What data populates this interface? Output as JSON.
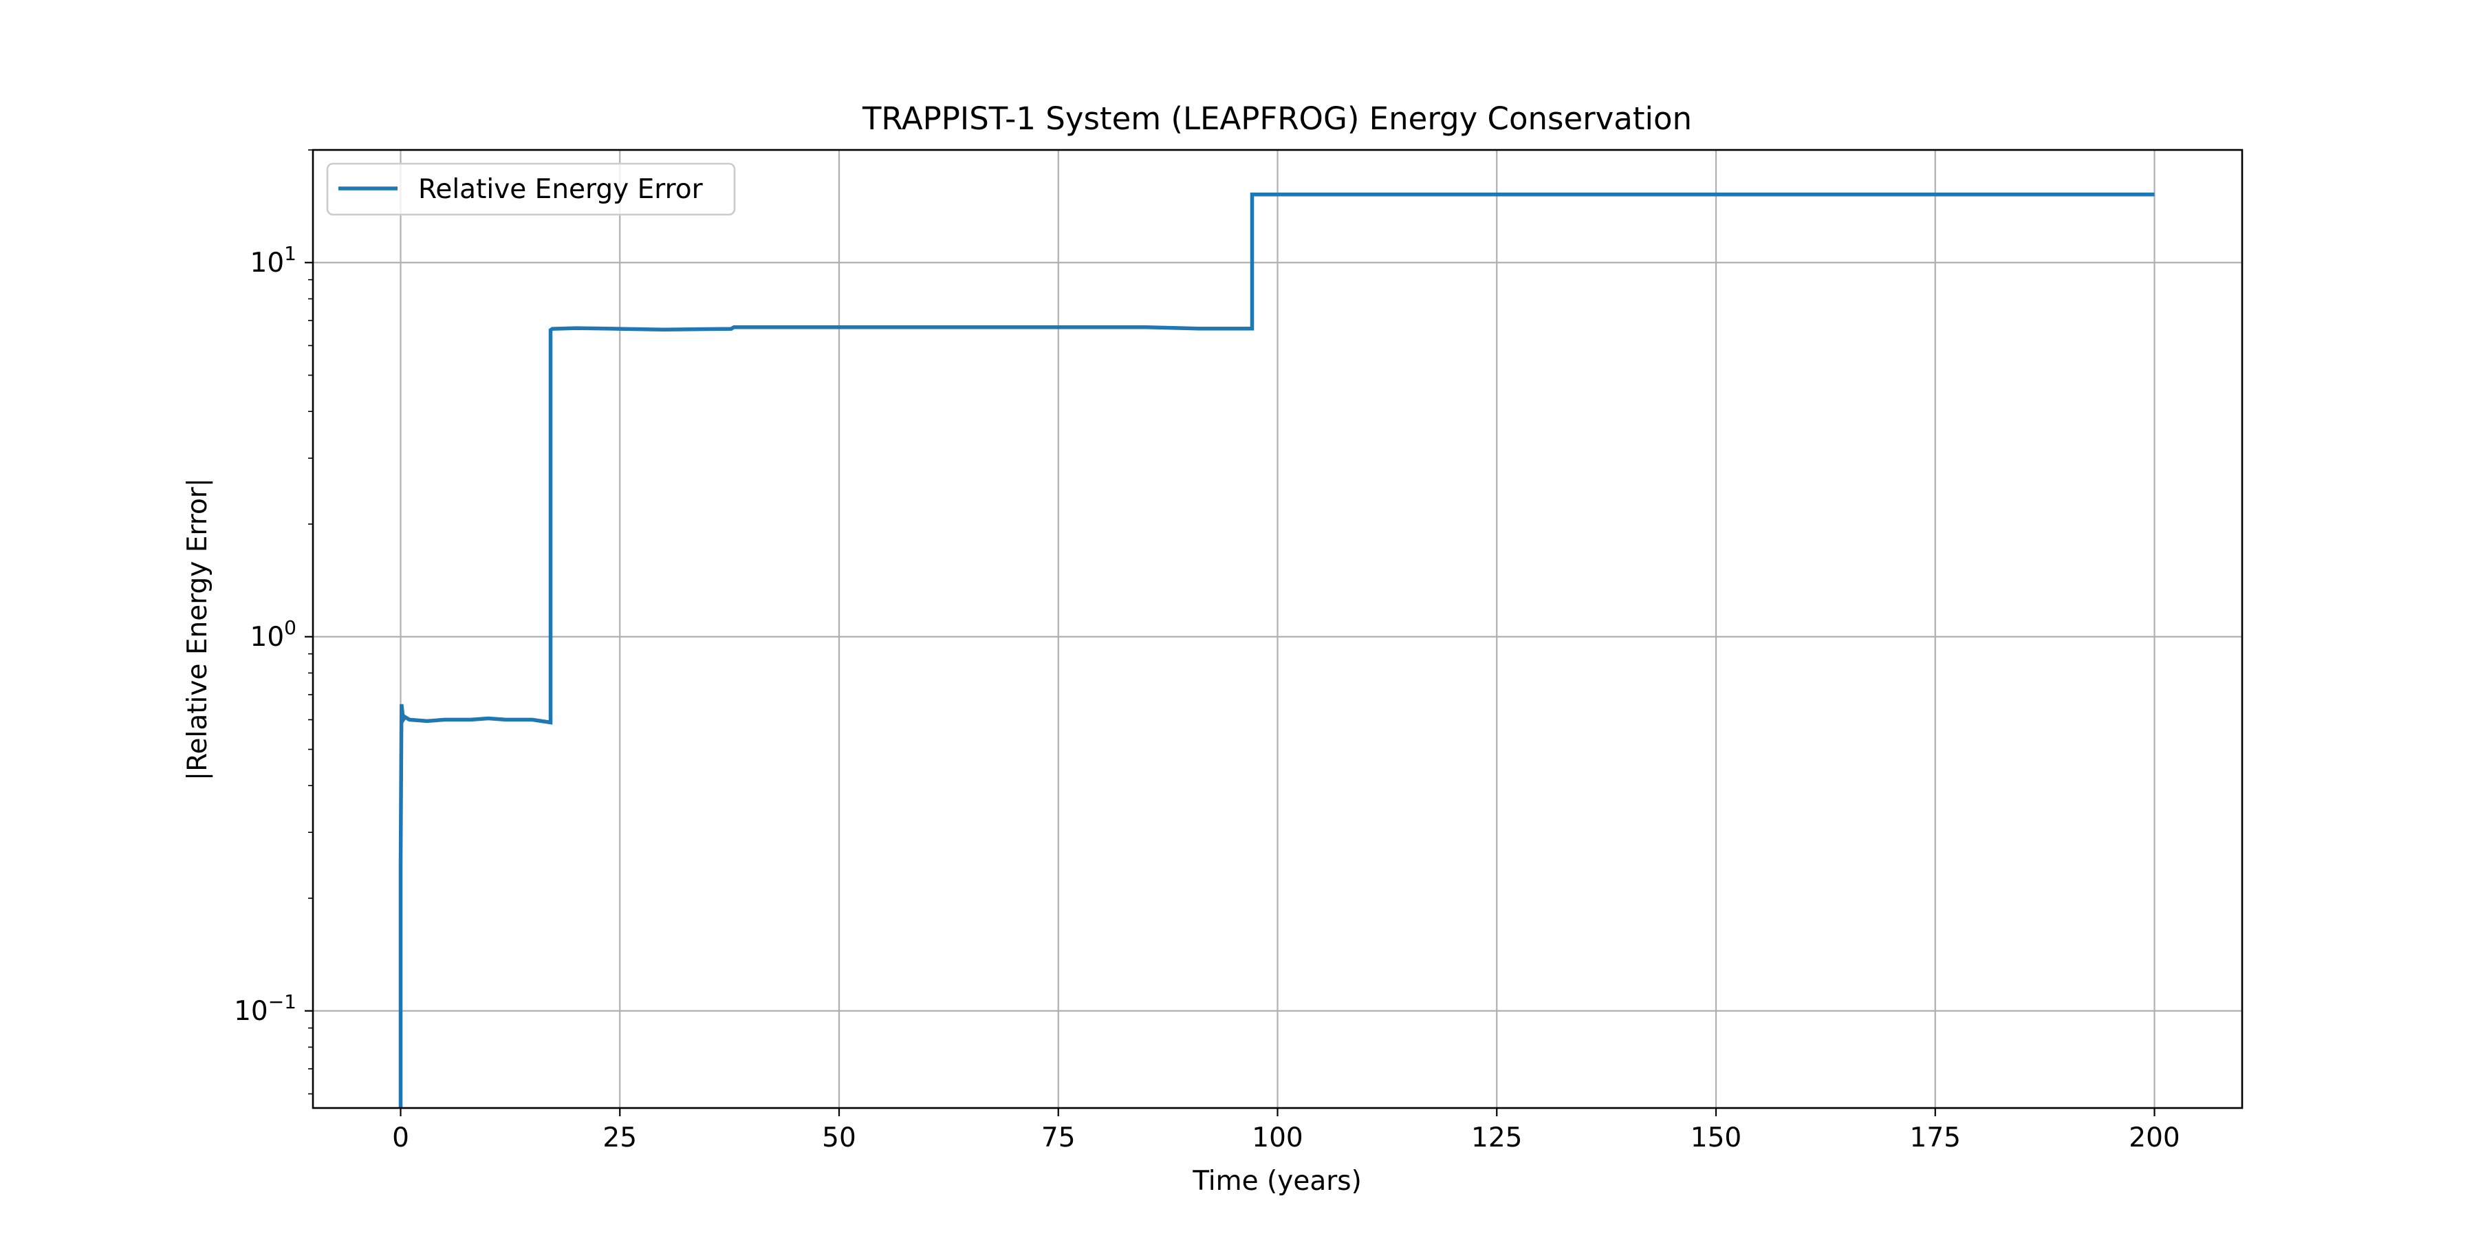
{
  "chart_data": {
    "type": "line",
    "title": "TRAPPIST-1 System (LEAPFROG) Energy Conservation",
    "xlabel": "Time (years)",
    "ylabel": "|Relative Energy Error|",
    "xlim": [
      -10,
      210
    ],
    "ylim": [
      0.055,
      20
    ],
    "yscale": "log",
    "grid": true,
    "legend": "top-left",
    "x_ticks": [
      0,
      25,
      50,
      75,
      100,
      125,
      150,
      175,
      200
    ],
    "x_tick_labels": [
      "0",
      "25",
      "50",
      "75",
      "100",
      "125",
      "150",
      "175",
      "200"
    ],
    "y_ticks": [
      0.1,
      1,
      10
    ],
    "y_tick_labels": [
      {
        "base": "10",
        "exp": "−1"
      },
      {
        "base": "10",
        "exp": "0"
      },
      {
        "base": "10",
        "exp": "1"
      }
    ],
    "series": [
      {
        "name": "Relative Energy Error",
        "color": "#1f77b4",
        "x": [
          0,
          0,
          0.1,
          0.3,
          0.5,
          1,
          3,
          5,
          8,
          10,
          12,
          15,
          17.1,
          17.1,
          17.3,
          20,
          25,
          30,
          37.7,
          38,
          45,
          55,
          65,
          75,
          85,
          91,
          97.1,
          97.1,
          110,
          130,
          150,
          175,
          200
        ],
        "y": [
          0.055,
          0.25,
          0.66,
          0.6,
          0.61,
          0.6,
          0.595,
          0.6,
          0.6,
          0.605,
          0.6,
          0.6,
          0.59,
          6.6,
          6.65,
          6.68,
          6.65,
          6.62,
          6.65,
          6.72,
          6.72,
          6.72,
          6.72,
          6.72,
          6.72,
          6.66,
          6.66,
          15.2,
          15.2,
          15.2,
          15.2,
          15.2,
          15.2
        ]
      }
    ]
  }
}
